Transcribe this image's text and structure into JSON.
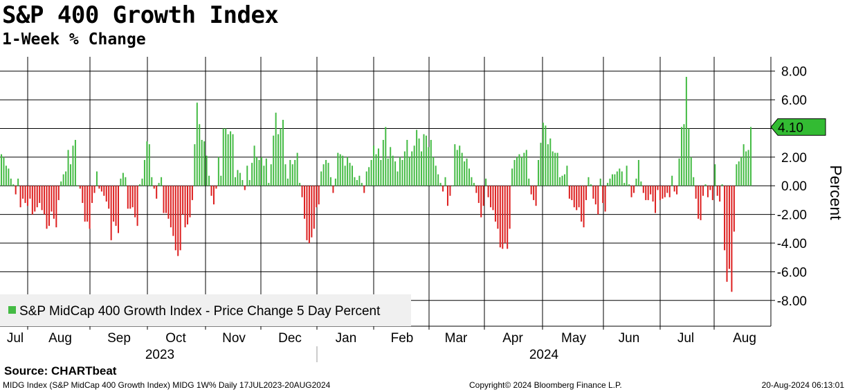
{
  "title": "S&P 400 Growth Index",
  "subtitle": "1-Week % Change",
  "source": "Source:  CHARTbeat",
  "footer": {
    "left": "MIDG Index (S&P MidCap 400 Growth Index) MIDG 1W%  Daily 17JUL2023-20AUG2024",
    "mid": "Copyright© 2024 Bloomberg Finance L.P.",
    "right": "20-Aug-2024 06:13:01"
  },
  "colors": {
    "positive": "#44bb44",
    "negative": "#dd1f1f",
    "badge": "#33bb33",
    "grid": "#000000"
  },
  "chart_data": {
    "type": "bar",
    "title": "S&P 400 Growth Index",
    "subtitle": "1-Week % Change",
    "ylabel": "Percent",
    "ylim": [
      -9.8,
      9.0
    ],
    "yticks": [
      8,
      6,
      4,
      2,
      0,
      -2,
      -4,
      -6,
      -8
    ],
    "ytick_labels": [
      "8.00",
      "6.00",
      "4.00",
      "2.00",
      "0.00",
      "-2.00",
      "-4.00",
      "-6.00",
      "-8.00"
    ],
    "months": [
      "Jul",
      "Aug",
      "Sep",
      "Oct",
      "Nov",
      "Dec",
      "Jan",
      "Feb",
      "Mar",
      "Apr",
      "May",
      "Jun",
      "Jul",
      "Aug"
    ],
    "years": [
      "2023",
      "2024"
    ],
    "legend": {
      "label": "S&P MidCap 400 Growth Index - Price Change 5 Day Percent",
      "position": "bottom-left"
    },
    "last_value_label": "4.10",
    "series": [
      {
        "name": "S&P MidCap 400 Growth Index - Price Change 5 Day Percent",
        "values": [
          2.2,
          2.0,
          1.4,
          1.2,
          0.5,
          0.1,
          -0.6,
          0.5,
          -1.5,
          -0.9,
          -1.2,
          -1.4,
          -0.9,
          -2.0,
          -1.8,
          -1.5,
          -1.2,
          -1.7,
          -2.0,
          -3.0,
          -2.8,
          -1.8,
          -2.3,
          -2.9,
          -1.0,
          0.3,
          0.8,
          1.0,
          2.5,
          1.5,
          2.8,
          3.2,
          0.0,
          -0.2,
          -1.2,
          -2.5,
          -2.5,
          -3.0,
          -1.2,
          -0.5,
          1.0,
          -0.2,
          -0.4,
          -0.7,
          -1.1,
          -1.6,
          -3.8,
          -2.5,
          -2.8,
          -3.3,
          0.5,
          0.9,
          0.6,
          -1.6,
          -1.6,
          -1.5,
          -2.2,
          -2.8,
          0.1,
          0.5,
          1.8,
          3.1,
          2.9,
          0.6,
          -0.2,
          -0.9,
          0.2,
          0.6,
          -1.9,
          -1.9,
          -2.3,
          -2.9,
          -3.5,
          -4.5,
          -4.9,
          -4.5,
          -2.0,
          -2.9,
          -2.7,
          -2.2,
          -1.0,
          2.9,
          5.8,
          4.3,
          3.2,
          3.1,
          2.1,
          0.7,
          -0.7,
          -1.3,
          -0.2,
          2.0,
          0.7,
          4.0,
          4.0,
          3.6,
          3.8,
          3.6,
          0.6,
          1.1,
          0.9,
          0.4,
          -0.3,
          1.4,
          0.4,
          1.6,
          2.8,
          2.0,
          1.8,
          2.0,
          1.4,
          1.9,
          0.2,
          1.5,
          3.5,
          5.1,
          3.6,
          4.0,
          4.6,
          1.5,
          0.5,
          1.8,
          1.5,
          1.8,
          2.3,
          0.2,
          -0.8,
          -2.3,
          -3.8,
          -4.0,
          -3.6,
          -3.0,
          -1.5,
          -1.3,
          1.0,
          1.5,
          1.8,
          1.6,
          0.6,
          -0.5,
          0.5,
          2.3,
          2.2,
          2.1,
          1.4,
          2.0,
          1.6,
          1.4,
          0.6,
          0.4,
          0.7,
          0.2,
          -0.5,
          1.0,
          1.3,
          1.8,
          2.8,
          2.2,
          2.6,
          1.8,
          3.2,
          4.1,
          1.9,
          2.7,
          2.1,
          1.7,
          1.0,
          2.0,
          1.8,
          2.4,
          3.2,
          2.0,
          2.4,
          2.8,
          3.9,
          3.3,
          2.4,
          3.6,
          3.5,
          2.7,
          3.2,
          2.0,
          1.4,
          0.8,
          0.2,
          -0.4,
          0.6,
          -1.4,
          -0.7,
          0.0,
          2.9,
          2.5,
          2.8,
          2.3,
          1.7,
          1.9,
          1.2,
          0.6,
          0.2,
          -0.5,
          -1.2,
          -2.2,
          -1.4,
          0.5,
          -0.8,
          -1.5,
          -1.7,
          -2.5,
          -3.0,
          -4.3,
          -4.4,
          -4.0,
          -4.4,
          -3.0,
          1.2,
          1.8,
          2.0,
          2.2,
          2.0,
          2.3,
          2.5,
          0.5,
          -0.6,
          -1.0,
          -1.4,
          1.8,
          3.0,
          4.4,
          4.2,
          2.9,
          3.3,
          2.4,
          2.3,
          2.3,
          0.6,
          0.7,
          0.8,
          1.4,
          -0.9,
          -1.0,
          -1.5,
          -1.7,
          -1.5,
          -2.5,
          -2.9,
          -1.0,
          0.6,
          0.1,
          -0.9,
          -1.3,
          -2.0,
          0.5,
          -1.2,
          -1.8,
          0.2,
          0.5,
          0.8,
          0.8,
          1.0,
          1.2,
          1.0,
          0.2,
          1.4,
          0.1,
          -0.8,
          -0.5,
          0.5,
          1.8,
          0.3,
          -0.5,
          -1.0,
          -1.0,
          -0.6,
          -1.1,
          -1.9,
          -0.3,
          -1.0,
          -0.9,
          -0.8,
          -0.5,
          -0.8,
          0.7,
          -0.4,
          -0.6,
          1.9,
          4.1,
          4.3,
          7.6,
          4.0,
          2.0,
          0.6,
          -0.9,
          -2.3,
          -2.4,
          -0.7,
          0.1,
          -0.8,
          -0.3,
          -1.0,
          1.5,
          -0.7,
          -1.1,
          0.1,
          -4.5,
          -6.7,
          -5.8,
          -7.4,
          -3.2,
          1.5,
          1.7,
          2.0,
          2.9,
          2.4,
          2.5,
          4.1
        ]
      }
    ]
  }
}
